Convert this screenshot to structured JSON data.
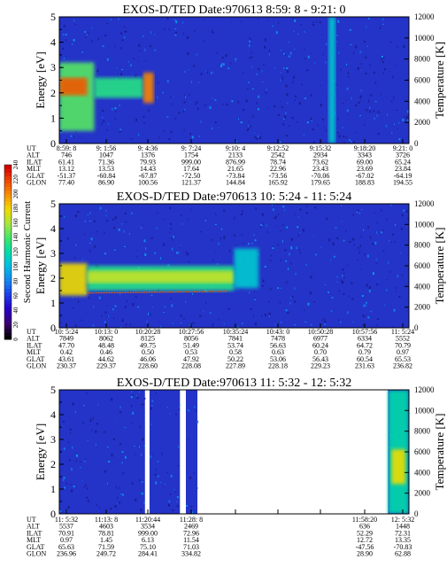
{
  "chart_data": [
    {
      "type": "heatmap",
      "title": "EXOS-D/TED   Date:970613  8:59: 8 - 9:21: 0",
      "ylabel": "Energy [eV]",
      "ylabel_right": "Temperature [K]",
      "ylim": [
        0,
        5
      ],
      "y_ticks": [
        "0",
        "1",
        "2",
        "3",
        "4",
        "5"
      ],
      "ylim_right": [
        0,
        12000
      ],
      "y_ticks_right": [
        "0",
        "2000",
        "4000",
        "6000",
        "8000",
        "10000",
        "12000"
      ],
      "rows": [
        {
          "label": "UT",
          "values": [
            "8:59: 8",
            "9: 1:56",
            "9: 4:36",
            "9: 7:24",
            "9:10: 4",
            "9:12:52",
            "9:15:32",
            "9:18:20",
            "9:21: 0"
          ]
        },
        {
          "label": "ALT",
          "values": [
            "746",
            "1047",
            "1376",
            "1754",
            "2133",
            "2542",
            "2934",
            "3343",
            "3726"
          ]
        },
        {
          "label": "ILAT",
          "values": [
            "61.41",
            "71.36",
            "79.93",
            "999.00",
            "876.99",
            "78.74",
            "73.62",
            "69.00",
            "65.24"
          ]
        },
        {
          "label": "MLT",
          "values": [
            "13.12",
            "13.53",
            "14.43",
            "17.64",
            "21.65",
            "22.96",
            "23.43",
            "23.69",
            "23.84"
          ]
        },
        {
          "label": "GLAT",
          "values": [
            "-51.37",
            "-60.84",
            "-67.87",
            "-72.50",
            "-73.84",
            "-73.56",
            "-70.06",
            "-67.02",
            "-64.19"
          ]
        },
        {
          "label": "GLON",
          "values": [
            "77.40",
            "86.90",
            "100.56",
            "121.37",
            "144.84",
            "165.92",
            "179.65",
            "188.83",
            "194.55"
          ]
        }
      ],
      "features": [
        {
          "kind": "band",
          "x0": 0.0,
          "x1": 0.1,
          "e0": 0.5,
          "e1": 3.2,
          "level": 0.6
        },
        {
          "kind": "band",
          "x0": 0.0,
          "x1": 0.08,
          "e0": 1.9,
          "e1": 2.6,
          "level": 0.9
        },
        {
          "kind": "band",
          "x0": 0.1,
          "x1": 0.24,
          "e0": 1.8,
          "e1": 2.6,
          "level": 0.55
        },
        {
          "kind": "band",
          "x0": 0.24,
          "x1": 0.27,
          "e0": 1.6,
          "e1": 2.8,
          "level": 0.85
        },
        {
          "kind": "band",
          "x0": 0.77,
          "x1": 0.79,
          "e0": 0,
          "e1": 5,
          "level": 0.45
        }
      ]
    },
    {
      "type": "heatmap",
      "title": "EXOS-D/TED   Date:970613  10: 5:24 - 11: 5:24",
      "ylabel": "Energy [eV]",
      "ylabel_right": "Temperature [K]",
      "ylim": [
        0,
        5
      ],
      "y_ticks": [
        "0",
        "1",
        "2",
        "3",
        "4",
        "5"
      ],
      "ylim_right": [
        0,
        12000
      ],
      "y_ticks_right": [
        "0",
        "2000",
        "4000",
        "6000",
        "8000",
        "10000",
        "12000"
      ],
      "rows": [
        {
          "label": "UT",
          "values": [
            "10: 5:24",
            "10:13: 0",
            "10:20:28",
            "10:27:56",
            "10:35:24",
            "10:43: 0",
            "10:50:28",
            "10:57:56",
            "11: 5:24"
          ]
        },
        {
          "label": "ALT",
          "values": [
            "7849",
            "8062",
            "8125",
            "8056",
            "7841",
            "7478",
            "6977",
            "6334",
            "5552"
          ]
        },
        {
          "label": "ILAT",
          "values": [
            "47.70",
            "48.48",
            "49.75",
            "51.49",
            "53.74",
            "56.63",
            "60.24",
            "64.72",
            "70.79"
          ]
        },
        {
          "label": "MLT",
          "values": [
            "0.42",
            "0.46",
            "0.50",
            "0.53",
            "0.58",
            "0.63",
            "0.70",
            "0.79",
            "0.97"
          ]
        },
        {
          "label": "GLAT",
          "values": [
            "43.61",
            "44.62",
            "46.06",
            "47.92",
            "50.22",
            "53.06",
            "56.43",
            "60.54",
            "65.53"
          ]
        },
        {
          "label": "GLON",
          "values": [
            "230.37",
            "229.37",
            "228.60",
            "228.08",
            "227.89",
            "228.18",
            "229.23",
            "231.63",
            "236.82"
          ]
        }
      ],
      "features": [
        {
          "kind": "band",
          "x0": 0.0,
          "x1": 0.08,
          "e0": 1.3,
          "e1": 2.6,
          "level": 0.75
        },
        {
          "kind": "band",
          "x0": 0.08,
          "x1": 0.5,
          "e0": 1.5,
          "e1": 2.5,
          "level": 0.55
        },
        {
          "kind": "band",
          "x0": 0.08,
          "x1": 0.5,
          "e0": 1.8,
          "e1": 2.3,
          "level": 0.7
        },
        {
          "kind": "band",
          "x0": 0.5,
          "x1": 0.57,
          "e0": 1.6,
          "e1": 3.2,
          "level": 0.45
        },
        {
          "kind": "line",
          "x0": 0.08,
          "x1": 0.48,
          "e0": 1.4,
          "level": 0.9
        }
      ]
    },
    {
      "type": "heatmap",
      "title": "EXOS-D/TED   Date:970613  11: 5:32 - 12: 5:32",
      "ylabel": "Energy [eV]",
      "ylabel_right": "Temperature [K]",
      "ylim": [
        0,
        5
      ],
      "y_ticks": [
        "0",
        "1",
        "2",
        "3",
        "4",
        "5"
      ],
      "ylim_right": [
        0,
        12000
      ],
      "y_ticks_right": [
        "0",
        "2000",
        "4000",
        "6000",
        "8000",
        "10000",
        "12000"
      ],
      "rows": [
        {
          "label": "UT",
          "values": [
            "11: 5:32",
            "11:13: 8",
            "11:20:44",
            "11:28: 8",
            "",
            "",
            "",
            "11:58:20",
            "12: 5:32"
          ]
        },
        {
          "label": "ALT",
          "values": [
            "5537",
            "4603",
            "3534",
            "2469",
            "",
            "",
            "",
            "636",
            "1448"
          ]
        },
        {
          "label": "ILAT",
          "values": [
            "70.91",
            "78.81",
            "999.00",
            "72.96",
            "",
            "",
            "",
            "52.29",
            "72.31"
          ]
        },
        {
          "label": "MLT",
          "values": [
            "0.97",
            "1.45",
            "6.13",
            "11.54",
            "",
            "",
            "",
            "12.72",
            "13.35"
          ]
        },
        {
          "label": "GLAT",
          "values": [
            "65.63",
            "71.59",
            "75.10",
            "71.03",
            "",
            "",
            "",
            "-47.56",
            "-70.83"
          ]
        },
        {
          "label": "GLON",
          "values": [
            "236.96",
            "249.72",
            "284.41",
            "334.82",
            "",
            "",
            "",
            "28.90",
            "62.88"
          ]
        }
      ],
      "data_segments": [
        [
          0.0,
          0.245
        ],
        [
          0.258,
          0.345
        ],
        [
          0.362,
          0.395
        ],
        [
          0.94,
          1.0
        ]
      ],
      "features": [
        {
          "kind": "band",
          "x0": 0.94,
          "x1": 1.0,
          "e0": 0.0,
          "e1": 5.0,
          "level": 0.5
        },
        {
          "kind": "band",
          "x0": 0.95,
          "x1": 0.99,
          "e0": 1.2,
          "e1": 2.6,
          "level": 0.75
        }
      ]
    }
  ],
  "colorbar": {
    "label": "Second Harmonic Current",
    "ticks": [
      "0",
      "20",
      "40",
      "60",
      "80",
      "100",
      "120",
      "140",
      "160",
      "180",
      "200",
      "220",
      "240"
    ],
    "range": [
      0,
      240
    ]
  },
  "colors": {
    "background": "#2433c8",
    "dark_speckle": "#1a1a8a",
    "gap": "#ffffff"
  }
}
